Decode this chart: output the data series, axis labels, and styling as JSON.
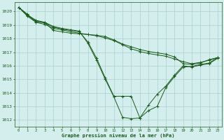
{
  "title": "Graphe pression niveau de la mer (hPa)",
  "bg_color": "#d4eeed",
  "grid_color": "#aacfcf",
  "line_color": "#1a5c1a",
  "xlim": [
    -0.5,
    23.5
  ],
  "ylim": [
    1011.5,
    1020.7
  ],
  "xticks": [
    0,
    1,
    2,
    3,
    4,
    5,
    6,
    7,
    8,
    9,
    10,
    11,
    12,
    13,
    14,
    15,
    16,
    17,
    18,
    19,
    20,
    21,
    22,
    23
  ],
  "yticks": [
    1012,
    1013,
    1014,
    1015,
    1016,
    1017,
    1018,
    1019,
    1020
  ],
  "series": [
    [
      1020.3,
      1019.8,
      1019.2,
      1019.2,
      1018.6,
      1018.5,
      1018.4,
      1018.35,
      1018.3,
      1018.25,
      1018.15,
      1017.9,
      1017.6,
      1017.4,
      1017.2,
      1017.05,
      1016.95,
      1016.85,
      1016.65,
      1016.15,
      1016.1,
      1016.2,
      1016.45,
      1016.6
    ],
    [
      1020.3,
      1019.65,
      1019.2,
      1019.05,
      1018.75,
      1018.65,
      1018.5,
      1018.4,
      1018.3,
      1018.2,
      1018.05,
      1017.85,
      1017.55,
      1017.25,
      1017.05,
      1016.9,
      1016.8,
      1016.7,
      1016.5,
      1016.3,
      1016.15,
      1016.25,
      1016.4,
      1016.6
    ],
    [
      1020.3,
      1019.7,
      1019.3,
      1019.15,
      1018.85,
      1018.7,
      1018.6,
      1018.5,
      1017.75,
      1016.55,
      1015.1,
      1013.75,
      1013.75,
      1013.75,
      1012.15,
      1013.1,
      1013.9,
      1014.5,
      1015.3,
      1016.0,
      1015.9,
      1016.05,
      1016.15,
      1016.55
    ],
    [
      1020.3,
      1019.75,
      1019.35,
      1019.2,
      1018.9,
      1018.75,
      1018.65,
      1018.55,
      1017.65,
      1016.4,
      1015.0,
      1013.7,
      1012.2,
      1012.1,
      1012.15,
      1012.7,
      1013.0,
      1014.4,
      1015.2,
      1015.9,
      1015.95,
      1016.1,
      1016.2,
      1016.6
    ]
  ]
}
